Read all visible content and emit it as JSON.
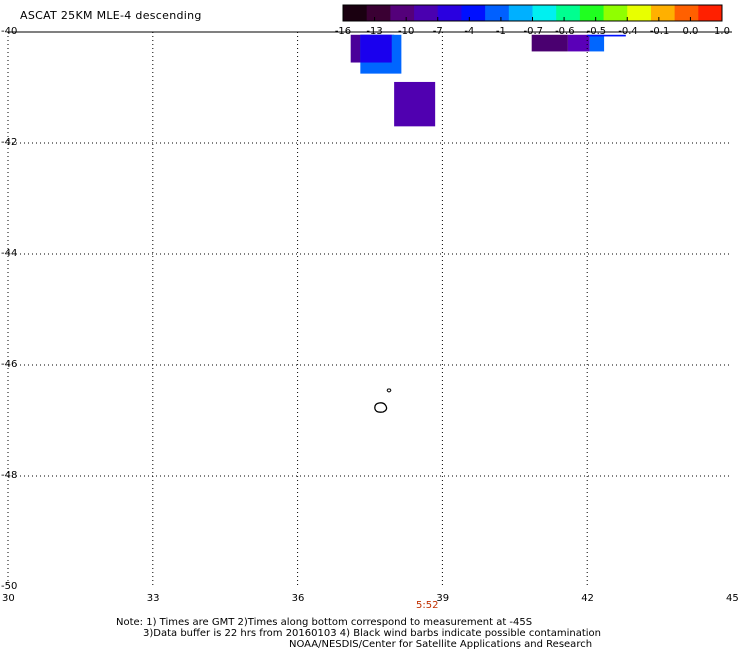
{
  "title": "ASCAT 25KM MLE-4 descending",
  "colorbar": {
    "colors": [
      "#1a0010",
      "#3a0033",
      "#54007a",
      "#4a00b0",
      "#2a00e0",
      "#0010ff",
      "#0060ff",
      "#00b0ff",
      "#00f0f0",
      "#00ff90",
      "#20ff20",
      "#90ff00",
      "#e8ff00",
      "#ffb000",
      "#ff6000",
      "#ff2000"
    ],
    "ticks": [
      "-16",
      "-13",
      "-10",
      "-7",
      "-4",
      "-1",
      "-0.7",
      "-0.6",
      "-0.5",
      "-0.4",
      "-0.1",
      "0.0",
      "1.0"
    ]
  },
  "x_axis": {
    "ticks": [
      "30",
      "33",
      "36",
      "39",
      "42",
      "45"
    ],
    "range": [
      30,
      45
    ]
  },
  "y_axis": {
    "ticks": [
      "-40",
      "-42",
      "-44",
      "-46",
      "-48",
      "-50"
    ],
    "range": [
      -50,
      -40
    ]
  },
  "time_label": "5:52",
  "time_color": "#c03000",
  "cells": [
    {
      "lon0": 37.1,
      "lon1": 38.0,
      "lat0": -40.05,
      "lat1": -40.55,
      "color": "#4a0099"
    },
    {
      "lon0": 37.3,
      "lon1": 38.15,
      "lat0": -40.05,
      "lat1": -40.75,
      "color": "#0066ff"
    },
    {
      "lon0": 37.3,
      "lon1": 37.95,
      "lat0": -40.05,
      "lat1": -40.55,
      "color": "#1a00ee"
    },
    {
      "lon0": 38.0,
      "lon1": 38.85,
      "lat0": -40.9,
      "lat1": -41.7,
      "color": "#5000b0"
    },
    {
      "lon0": 40.85,
      "lon1": 41.6,
      "lat0": -40.05,
      "lat1": -40.35,
      "color": "#4a0070"
    },
    {
      "lon0": 41.6,
      "lon1": 42.05,
      "lat0": -40.05,
      "lat1": -40.35,
      "color": "#5a00b8"
    },
    {
      "lon0": 42.05,
      "lon1": 42.35,
      "lat0": -40.05,
      "lat1": -40.35,
      "color": "#0066ff"
    },
    {
      "lon0": 42.0,
      "lon1": 42.8,
      "lat0": -40.05,
      "lat1": -40.08,
      "color": "#0010ff"
    }
  ],
  "notes": {
    "line1": "Note: 1) Times are GMT 2)Times along bottom correspond to measurement at -45S",
    "line2": "3)Data buffer is 22 hrs from 20160103 4) Black wind barbs indicate possible contamination",
    "line3": "NOAA/NESDIS/Center for Satellite Applications and Research"
  }
}
